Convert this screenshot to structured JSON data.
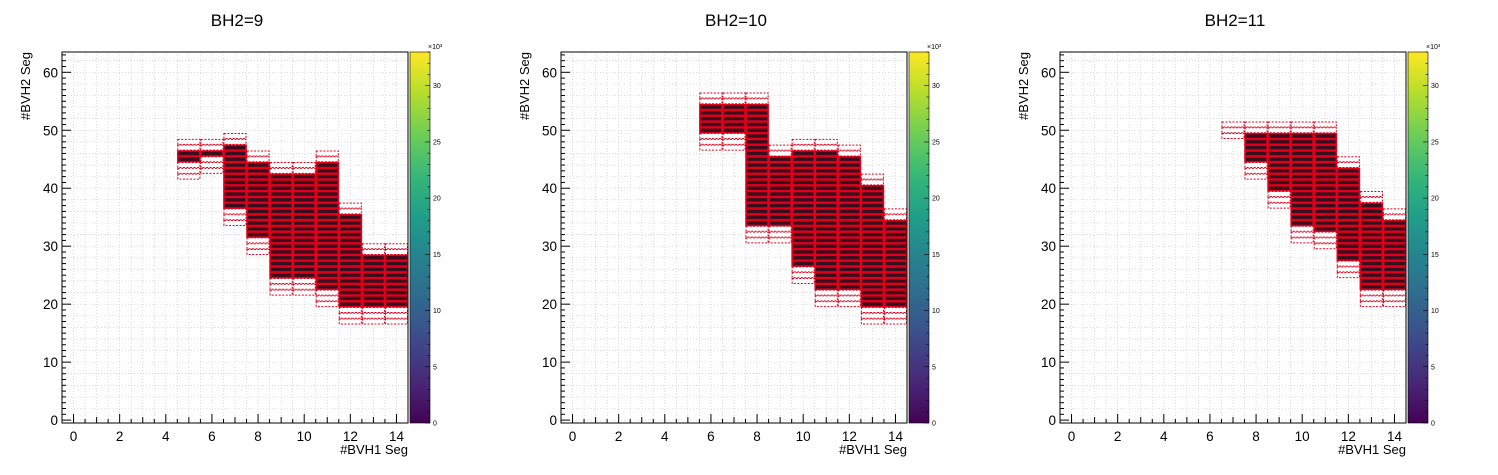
{
  "chart_data": [
    {
      "type": "heatmap",
      "title": "BH2=9",
      "xlabel": "#BVH1 Seg",
      "ylabel": "#BVH2 Seg",
      "xlim": [
        -0.5,
        14.5
      ],
      "ylim": [
        -0.5,
        63.5
      ],
      "x_ticks": [
        "0",
        "2",
        "4",
        "6",
        "8",
        "10",
        "12",
        "14"
      ],
      "y_ticks": [
        "0",
        "10",
        "20",
        "30",
        "40",
        "50",
        "60"
      ],
      "z_ticks": [
        "0",
        "5",
        "10",
        "15",
        "20",
        "25",
        "30"
      ],
      "z_multiplier": "×10³",
      "zlim": [
        0,
        33
      ],
      "grid": true,
      "colormap": "viridis",
      "column_ranges": [
        {
          "x": 5,
          "y_range": [
            42,
            48
          ]
        },
        {
          "x": 6,
          "y_range": [
            43,
            48
          ]
        },
        {
          "x": 7,
          "y_range": [
            34,
            49
          ]
        },
        {
          "x": 8,
          "y_range": [
            29,
            46
          ]
        },
        {
          "x": 9,
          "y_range": [
            22,
            44
          ]
        },
        {
          "x": 10,
          "y_range": [
            22,
            44
          ]
        },
        {
          "x": 11,
          "y_range": [
            20,
            46
          ]
        },
        {
          "x": 12,
          "y_range": [
            17,
            37
          ]
        },
        {
          "x": 13,
          "y_range": [
            17,
            30
          ]
        },
        {
          "x": 14,
          "y_range": [
            17,
            30
          ]
        }
      ]
    },
    {
      "type": "heatmap",
      "title": "BH2=10",
      "xlabel": "#BVH1 Seg",
      "ylabel": "#BVH2 Seg",
      "xlim": [
        -0.5,
        14.5
      ],
      "ylim": [
        -0.5,
        63.5
      ],
      "x_ticks": [
        "0",
        "2",
        "4",
        "6",
        "8",
        "10",
        "12",
        "14"
      ],
      "y_ticks": [
        "0",
        "10",
        "20",
        "30",
        "40",
        "50",
        "60"
      ],
      "z_ticks": [
        "0",
        "5",
        "10",
        "15",
        "20",
        "25",
        "30"
      ],
      "z_multiplier": "×10³",
      "zlim": [
        0,
        33
      ],
      "grid": true,
      "colormap": "viridis",
      "column_ranges": [
        {
          "x": 6,
          "y_range": [
            47,
            56
          ]
        },
        {
          "x": 7,
          "y_range": [
            47,
            56
          ]
        },
        {
          "x": 8,
          "y_range": [
            31,
            56
          ]
        },
        {
          "x": 9,
          "y_range": [
            31,
            47
          ]
        },
        {
          "x": 10,
          "y_range": [
            24,
            48
          ]
        },
        {
          "x": 11,
          "y_range": [
            20,
            48
          ]
        },
        {
          "x": 12,
          "y_range": [
            20,
            47
          ]
        },
        {
          "x": 13,
          "y_range": [
            17,
            42
          ]
        },
        {
          "x": 14,
          "y_range": [
            17,
            36
          ]
        }
      ]
    },
    {
      "type": "heatmap",
      "title": "BH2=11",
      "xlabel": "#BVH1 Seg",
      "ylabel": "#BVH2 Seg",
      "xlim": [
        -0.5,
        14.5
      ],
      "ylim": [
        -0.5,
        63.5
      ],
      "x_ticks": [
        "0",
        "2",
        "4",
        "6",
        "8",
        "10",
        "12",
        "14"
      ],
      "y_ticks": [
        "0",
        "10",
        "20",
        "30",
        "40",
        "50",
        "60"
      ],
      "z_ticks": [
        "0",
        "5",
        "10",
        "15",
        "20",
        "25",
        "30"
      ],
      "z_multiplier": "×10³",
      "zlim": [
        0,
        33
      ],
      "grid": true,
      "colormap": "viridis",
      "column_ranges": [
        {
          "x": 7,
          "y_range": [
            49,
            51
          ]
        },
        {
          "x": 8,
          "y_range": [
            42,
            51
          ]
        },
        {
          "x": 9,
          "y_range": [
            37,
            51
          ]
        },
        {
          "x": 10,
          "y_range": [
            31,
            51
          ]
        },
        {
          "x": 11,
          "y_range": [
            30,
            51
          ]
        },
        {
          "x": 12,
          "y_range": [
            25,
            45
          ]
        },
        {
          "x": 13,
          "y_range": [
            20,
            39
          ]
        },
        {
          "x": 14,
          "y_range": [
            20,
            36
          ]
        }
      ]
    }
  ]
}
